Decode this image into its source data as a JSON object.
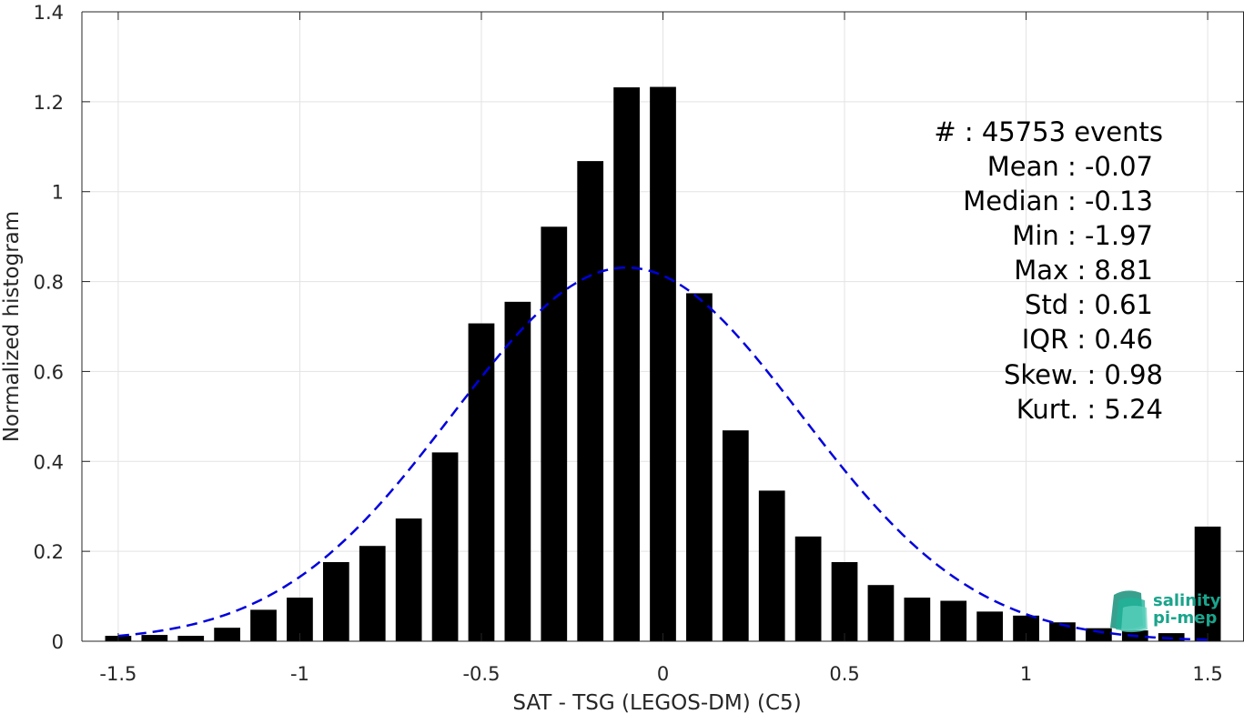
{
  "chart_data": {
    "type": "bar",
    "xlabel": "SAT - TSG (LEGOS-DM) (C5)",
    "ylabel": "Normalized histogram",
    "xlim": [
      -1.6,
      1.6
    ],
    "ylim": [
      0,
      1.4
    ],
    "grid": true,
    "x_ticks": [
      "-1.5",
      "-1",
      "-0.5",
      "0",
      "0.5",
      "1",
      "1.5"
    ],
    "x_tick_values": [
      -1.5,
      -1,
      -0.5,
      0,
      0.5,
      1,
      1.5
    ],
    "y_ticks": [
      "0",
      "0.2",
      "0.4",
      "0.6",
      "0.8",
      "1",
      "1.2",
      "1.4"
    ],
    "y_tick_values": [
      0,
      0.2,
      0.4,
      0.6,
      0.8,
      1,
      1.2,
      1.4
    ],
    "bar_centers": [
      -1.5,
      -1.4,
      -1.3,
      -1.2,
      -1.1,
      -1.0,
      -0.9,
      -0.8,
      -0.7,
      -0.6,
      -0.5,
      -0.4,
      -0.3,
      -0.2,
      -0.1,
      0.0,
      0.1,
      0.2,
      0.3,
      0.4,
      0.5,
      0.6,
      0.7,
      0.8,
      0.9,
      1.0,
      1.1,
      1.2,
      1.3,
      1.4,
      1.5
    ],
    "values": [
      0.012,
      0.014,
      0.012,
      0.03,
      0.07,
      0.097,
      0.176,
      0.212,
      0.273,
      0.42,
      0.707,
      0.755,
      0.922,
      1.068,
      1.232,
      1.233,
      0.774,
      0.469,
      0.335,
      0.233,
      0.176,
      0.125,
      0.097,
      0.09,
      0.066,
      0.057,
      0.042,
      0.029,
      0.024,
      0.018,
      0.255
    ],
    "bar_color": "#000000",
    "fit_curve": {
      "style": "dashed",
      "color": "#0000dd",
      "mean": -0.1,
      "std": 0.48,
      "x_range": [
        -1.5,
        1.5
      ]
    },
    "annotations": [
      "#  : 45753 events",
      "Mean : -0.07",
      "Median : -0.13",
      "Min : -1.97",
      "Max : 8.81",
      "Std : 0.61",
      "IQR : 0.46",
      "Skew. : 0.98",
      "Kurt. : 5.24"
    ]
  },
  "logo": {
    "line1": "salinity",
    "line2": "pi-mep",
    "color": "#1aa48c"
  }
}
